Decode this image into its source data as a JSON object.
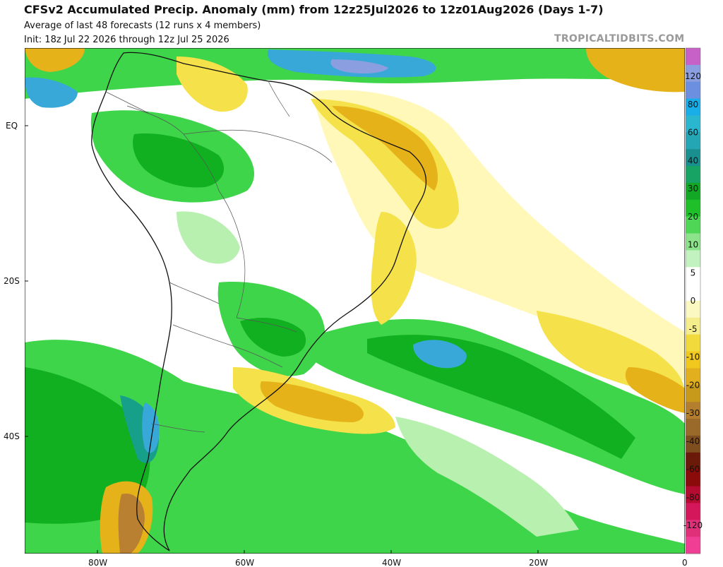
{
  "header": {
    "title": "CFSv2 Accumulated Precip. Anomaly (mm) from 12z25Jul2026 to 12z01Aug2026 (Days 1-7)",
    "subtitle_1": "Average of last 48 forecasts (12 runs x 4 members)",
    "subtitle_2": "Init: 18z Jul 22 2026 through 12z Jul 25 2026",
    "watermark": "TROPICALTIDBITS.COM"
  },
  "map": {
    "region": "South America",
    "longitude_labels": [
      "80W",
      "60W",
      "40W",
      "20W",
      "0"
    ],
    "latitude_labels": [
      "EQ",
      "20S",
      "40S"
    ],
    "colors": {
      "ocean_background": "#ffffff",
      "green_light": "#b8f0b0",
      "green_mid": "#3fd54a",
      "green_dark": "#10b020",
      "teal": "#16a08a",
      "blue": "#38a8d8",
      "yellow_light": "#fff8b8",
      "yellow": "#f5e14a",
      "orange": "#e6b21a",
      "brown": "#b88030"
    }
  },
  "colorbar": {
    "labels": [
      "120",
      "80",
      "60",
      "40",
      "30",
      "20",
      "10",
      "5",
      "0",
      "-5",
      "-10",
      "-20",
      "-30",
      "-40",
      "-60",
      "-80",
      "-120"
    ],
    "colors": [
      "#c760c7",
      "#8a9ee0",
      "#6d8fe0",
      "#1aaee8",
      "#2bb6cf",
      "#25a6b5",
      "#1a8f8f",
      "#17a364",
      "#12a826",
      "#1fbf2a",
      "#4fd656",
      "#8ce38c",
      "#c2f2bf",
      "#ffffff",
      "#ffffff",
      "#fbf8c2",
      "#f5ec8c",
      "#f1da3c",
      "#f0c81e",
      "#e2b01e",
      "#c79a1c",
      "#b37f2e",
      "#9a6a2a",
      "#7e4e1e",
      "#6b1a0a",
      "#8b0a0a",
      "#b40b30",
      "#d4165a",
      "#e0307a",
      "#f03e94"
    ]
  }
}
